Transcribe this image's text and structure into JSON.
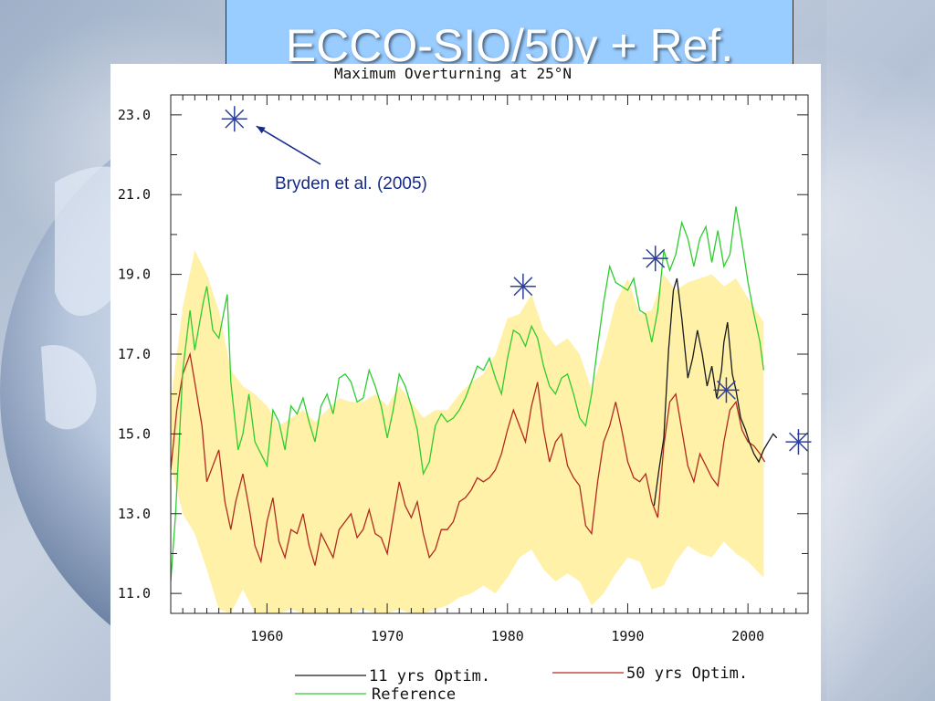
{
  "slide": {
    "title": "ECCO-SIO/50y + Ref."
  },
  "chart_data": {
    "type": "line",
    "title": "Maximum Overturning at 25°N",
    "xlabel": "",
    "ylabel": "",
    "xlim": [
      1952,
      2005
    ],
    "ylim": [
      10.5,
      23.5
    ],
    "x_ticks": [
      1960,
      1970,
      1980,
      1990,
      2000
    ],
    "x_tick_labels": [
      "1960",
      "1970",
      "1980",
      "1990",
      "2000"
    ],
    "y_ticks": [
      11,
      13,
      15,
      17,
      19,
      21,
      23
    ],
    "y_tick_labels": [
      "11.0",
      "13.0",
      "15.0",
      "17.0",
      "19.0",
      "21.0",
      "23.0"
    ],
    "grid": false,
    "legend_position": "bottom",
    "legend": {
      "opt11": "11 yrs Optim.",
      "opt50": "50 yrs Optim.",
      "ref": "Reference"
    },
    "colors": {
      "opt11": "#1a1a1a",
      "opt50": "#b22a1e",
      "ref": "#2ecc2e",
      "band": "#fff1a8",
      "markers": "#2f3f9c",
      "annotation": "#142a8c"
    },
    "annotation": {
      "text": "Bryden et al. (2005)",
      "points_to_year": 1957.3,
      "points_to_value": 22.9
    },
    "series": [
      {
        "name": "50 yrs Optim.",
        "key": "opt50",
        "x": [
          1952.0,
          1952.5,
          1953.0,
          1953.6,
          1954.0,
          1954.6,
          1955.0,
          1955.5,
          1956.0,
          1956.5,
          1957.0,
          1957.4,
          1958.0,
          1958.6,
          1959.0,
          1959.5,
          1960.0,
          1960.5,
          1961.0,
          1961.5,
          1962.0,
          1962.5,
          1963.0,
          1963.5,
          1964.0,
          1964.5,
          1965.0,
          1965.5,
          1966.0,
          1966.5,
          1967.0,
          1967.5,
          1968.0,
          1968.5,
          1969.0,
          1969.5,
          1970.0,
          1970.5,
          1971.0,
          1971.5,
          1972.0,
          1972.5,
          1973.0,
          1973.5,
          1974.0,
          1974.5,
          1975.0,
          1975.5,
          1976.0,
          1976.5,
          1977.0,
          1977.5,
          1978.0,
          1978.5,
          1979.0,
          1979.5,
          1980.0,
          1980.5,
          1981.0,
          1981.5,
          1982.0,
          1982.5,
          1983.0,
          1983.5,
          1984.0,
          1984.5,
          1985.0,
          1985.5,
          1986.0,
          1986.5,
          1987.0,
          1987.5,
          1988.0,
          1988.5,
          1989.0,
          1989.5,
          1990.0,
          1990.5,
          1991.0,
          1991.5,
          1992.0,
          1992.5,
          1993.0,
          1993.5,
          1994.0,
          1994.5,
          1995.0,
          1995.5,
          1996.0,
          1996.5,
          1997.0,
          1997.5,
          1998.0,
          1998.5,
          1999.0,
          1999.5,
          2000.0,
          2000.5,
          2001.0,
          2001.4
        ],
        "values": [
          14.1,
          15.6,
          16.5,
          17.0,
          16.3,
          15.2,
          13.8,
          14.2,
          14.6,
          13.3,
          12.6,
          13.3,
          14.0,
          13.0,
          12.2,
          11.8,
          12.8,
          13.4,
          12.3,
          11.9,
          12.6,
          12.5,
          13.0,
          12.2,
          11.7,
          12.5,
          12.2,
          11.9,
          12.6,
          12.8,
          13.0,
          12.4,
          12.6,
          13.1,
          12.5,
          12.4,
          12.0,
          12.9,
          13.8,
          13.2,
          12.9,
          13.3,
          12.5,
          11.9,
          12.1,
          12.6,
          12.6,
          12.8,
          13.3,
          13.4,
          13.6,
          13.9,
          13.8,
          13.9,
          14.1,
          14.5,
          15.1,
          15.6,
          15.2,
          14.8,
          15.7,
          16.3,
          15.1,
          14.3,
          14.8,
          15.0,
          14.2,
          13.9,
          13.7,
          12.7,
          12.5,
          13.8,
          14.8,
          15.2,
          15.8,
          15.1,
          14.3,
          13.9,
          13.8,
          14.0,
          13.3,
          12.9,
          14.7,
          15.8,
          16.0,
          15.1,
          14.2,
          13.8,
          14.5,
          14.2,
          13.9,
          13.7,
          14.8,
          15.6,
          15.8,
          15.1,
          14.8,
          14.7,
          14.5,
          14.3
        ]
      },
      {
        "name": "Reference",
        "key": "ref",
        "x": [
          1952.0,
          1952.4,
          1953.0,
          1953.6,
          1954.0,
          1954.7,
          1955.0,
          1955.5,
          1956.0,
          1956.7,
          1957.0,
          1957.6,
          1958.0,
          1958.5,
          1959.0,
          1959.5,
          1960.0,
          1960.5,
          1961.0,
          1961.5,
          1962.0,
          1962.5,
          1963.0,
          1963.5,
          1964.0,
          1964.5,
          1965.0,
          1965.5,
          1966.0,
          1966.5,
          1967.0,
          1967.5,
          1968.0,
          1968.5,
          1969.0,
          1969.5,
          1970.0,
          1970.5,
          1971.0,
          1971.5,
          1972.0,
          1972.5,
          1973.0,
          1973.5,
          1974.0,
          1974.5,
          1975.0,
          1975.5,
          1976.0,
          1976.5,
          1977.0,
          1977.5,
          1978.0,
          1978.5,
          1979.0,
          1979.5,
          1980.0,
          1980.5,
          1981.0,
          1981.5,
          1982.0,
          1982.5,
          1983.0,
          1983.5,
          1984.0,
          1984.5,
          1985.0,
          1985.5,
          1986.0,
          1986.5,
          1987.0,
          1987.5,
          1988.0,
          1988.5,
          1989.0,
          1989.5,
          1990.0,
          1990.5,
          1991.0,
          1991.5,
          1992.0,
          1992.5,
          1993.0,
          1993.5,
          1994.0,
          1994.5,
          1995.0,
          1995.5,
          1996.0,
          1996.5,
          1997.0,
          1997.5,
          1998.0,
          1998.5,
          1999.0,
          1999.5,
          2000.0,
          2000.5,
          2001.0,
          2001.3
        ],
        "values": [
          11.3,
          13.0,
          16.6,
          18.1,
          17.1,
          18.3,
          18.7,
          17.6,
          17.4,
          18.5,
          16.3,
          14.6,
          15.0,
          16.0,
          14.8,
          14.5,
          14.2,
          15.6,
          15.3,
          14.6,
          15.7,
          15.5,
          15.9,
          15.3,
          14.8,
          15.7,
          16.0,
          15.5,
          16.4,
          16.5,
          16.3,
          15.8,
          15.9,
          16.6,
          16.2,
          15.7,
          14.9,
          15.6,
          16.5,
          16.2,
          15.7,
          15.1,
          14.0,
          14.3,
          15.2,
          15.5,
          15.3,
          15.4,
          15.6,
          15.9,
          16.3,
          16.7,
          16.6,
          16.9,
          16.4,
          16.0,
          16.9,
          17.6,
          17.5,
          17.2,
          17.7,
          17.4,
          16.7,
          16.2,
          16.0,
          16.4,
          16.5,
          16.0,
          15.4,
          15.2,
          16.0,
          17.2,
          18.3,
          19.2,
          18.8,
          18.7,
          18.6,
          18.9,
          18.1,
          18.0,
          17.3,
          18.1,
          19.6,
          19.1,
          19.5,
          20.3,
          19.9,
          19.2,
          19.9,
          20.2,
          19.3,
          20.1,
          19.2,
          19.5,
          20.7,
          19.8,
          18.8,
          18.0,
          17.3,
          16.6
        ]
      },
      {
        "name": "11 yrs Optim.",
        "key": "opt11",
        "x": [
          1992.2,
          1992.6,
          1993.0,
          1993.4,
          1993.8,
          1994.1,
          1994.5,
          1995.0,
          1995.4,
          1995.8,
          1996.2,
          1996.6,
          1997.0,
          1997.4,
          1997.8,
          1998.0,
          1998.3,
          1998.7,
          1999.0,
          1999.4,
          1999.8,
          2000.1,
          2000.5,
          2000.9,
          2001.3,
          2001.7,
          2002.1,
          2002.4
        ],
        "values": [
          13.2,
          14.1,
          14.9,
          17.1,
          18.6,
          18.9,
          17.9,
          16.4,
          16.9,
          17.6,
          17.0,
          16.2,
          16.7,
          15.9,
          16.6,
          17.3,
          17.8,
          16.5,
          16.1,
          15.4,
          15.1,
          14.8,
          14.5,
          14.3,
          14.6,
          14.8,
          15.0,
          14.9
        ]
      }
    ],
    "band": {
      "name": "uncertainty range",
      "x": [
        1952.0,
        1953.0,
        1954.0,
        1955.0,
        1956.0,
        1957.0,
        1958.0,
        1959.0,
        1960.0,
        1961.0,
        1962.0,
        1963.0,
        1964.0,
        1965.0,
        1966.0,
        1967.0,
        1968.0,
        1969.0,
        1970.0,
        1971.0,
        1972.0,
        1973.0,
        1974.0,
        1975.0,
        1976.0,
        1977.0,
        1978.0,
        1979.0,
        1980.0,
        1981.0,
        1982.0,
        1983.0,
        1984.0,
        1985.0,
        1986.0,
        1987.0,
        1988.0,
        1989.0,
        1990.0,
        1991.0,
        1992.0,
        1993.0,
        1994.0,
        1995.0,
        1996.0,
        1997.0,
        1998.0,
        1999.0,
        2000.0,
        2001.3
      ],
      "lower": [
        14.2,
        13.0,
        12.5,
        11.6,
        10.6,
        10.5,
        11.1,
        10.5,
        10.5,
        10.5,
        10.6,
        10.5,
        10.5,
        10.5,
        10.5,
        10.5,
        10.6,
        10.5,
        10.5,
        10.6,
        10.5,
        10.5,
        10.6,
        10.7,
        10.9,
        11.0,
        11.2,
        11.0,
        11.4,
        11.9,
        12.1,
        11.6,
        11.3,
        11.5,
        11.3,
        10.7,
        11.0,
        11.5,
        11.9,
        11.8,
        11.1,
        11.2,
        11.8,
        12.2,
        12.0,
        11.9,
        12.3,
        12.0,
        11.8,
        11.4
      ],
      "upper": [
        15.8,
        18.2,
        19.6,
        19.0,
        18.1,
        16.6,
        16.2,
        16.0,
        15.7,
        15.2,
        15.4,
        15.6,
        15.3,
        15.6,
        15.9,
        15.8,
        15.8,
        16.0,
        15.7,
        16.2,
        15.8,
        15.4,
        15.6,
        15.6,
        16.0,
        16.3,
        16.5,
        17.0,
        17.9,
        18.0,
        18.5,
        17.6,
        17.2,
        17.4,
        17.0,
        16.1,
        17.1,
        18.3,
        18.9,
        18.0,
        18.1,
        19.0,
        18.6,
        18.8,
        18.9,
        19.0,
        18.7,
        18.9,
        18.4,
        17.8
      ]
    },
    "markers": {
      "name": "Bryden et al. (2005)",
      "x": [
        1957.3,
        1981.3,
        1992.3,
        1998.2,
        2004.2
      ],
      "values": [
        22.9,
        18.7,
        19.4,
        16.1,
        14.8
      ]
    }
  }
}
